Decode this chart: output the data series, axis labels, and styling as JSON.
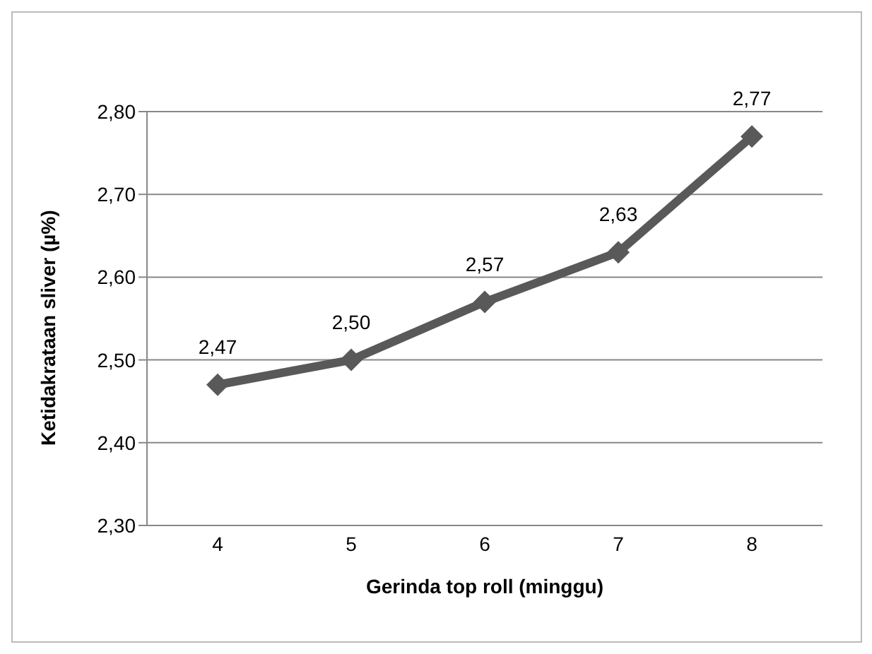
{
  "chart_data": {
    "type": "line",
    "xlabel": "Gerinda top roll (minggu)",
    "ylabel": "Ketidakrataan sliver (µ%)",
    "categories": [
      "4",
      "5",
      "6",
      "7",
      "8"
    ],
    "series": [
      {
        "color": "#595959",
        "values": [
          2.47,
          2.5,
          2.57,
          2.63,
          2.77
        ],
        "value_labels": [
          "2,47",
          "2,50",
          "2,57",
          "2,63",
          "2,77"
        ]
      }
    ],
    "ylim": [
      2.3,
      2.8
    ],
    "yticks": [
      {
        "value": 2.3,
        "label": "2,30"
      },
      {
        "value": 2.4,
        "label": "2,40"
      },
      {
        "value": 2.5,
        "label": "2,50"
      },
      {
        "value": 2.6,
        "label": "2,60"
      },
      {
        "value": 2.7,
        "label": "2,70"
      },
      {
        "value": 2.8,
        "label": "2,80"
      }
    ],
    "grid": "y",
    "marker": "diamond",
    "line_style": "solid",
    "legend": false
  }
}
